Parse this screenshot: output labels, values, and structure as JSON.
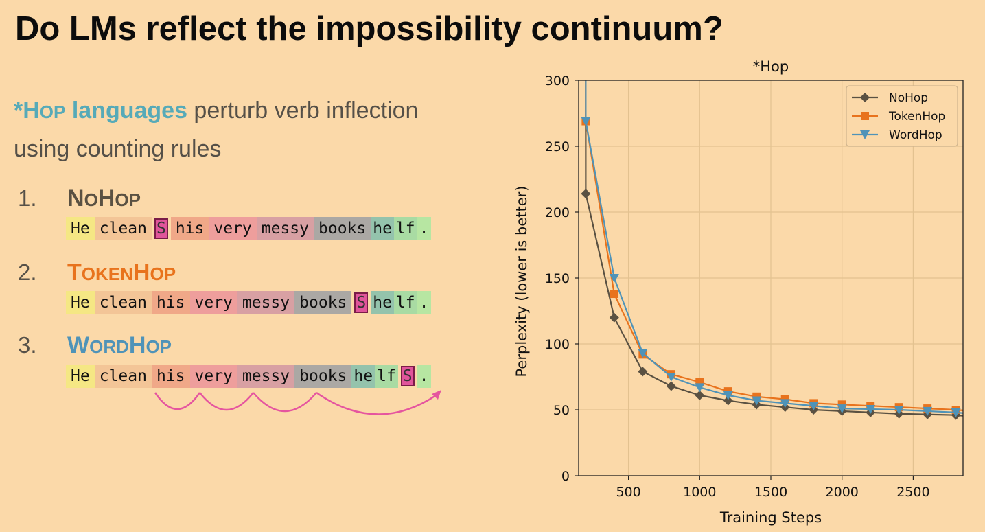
{
  "slide": {
    "title": "Do LMs reflect the impossibility continuum?",
    "intro": {
      "hop_star": "*H",
      "hop_small": "OP",
      "hop_languages": " languages",
      "rest_line1": " perturb verb inflection",
      "line2": "using counting rules"
    }
  },
  "items": [
    {
      "number": "1.",
      "name_parts": [
        "N",
        "O",
        "H",
        "OP"
      ],
      "color": "#5a5142",
      "tokens": [
        {
          "text": "He",
          "cls": "c-he"
        },
        {
          "text": "clean",
          "cls": "c-clean"
        },
        {
          "text": "S",
          "cls": "sfx"
        },
        {
          "text": "his",
          "cls": "c-his"
        },
        {
          "text": "very",
          "cls": "c-very"
        },
        {
          "text": "messy",
          "cls": "c-messy"
        },
        {
          "text": "books",
          "cls": "c-books"
        },
        {
          "text": "he",
          "cls": "c-hel",
          "tight": true
        },
        {
          "text": "lf",
          "cls": "c-lf",
          "tight": true
        },
        {
          "text": ".",
          "cls": "c-dot",
          "tight": true
        }
      ]
    },
    {
      "number": "2.",
      "name_parts": [
        "T",
        "OKEN",
        "H",
        "OP"
      ],
      "color": "#e8731d",
      "tokens": [
        {
          "text": "He",
          "cls": "c-he"
        },
        {
          "text": "clean",
          "cls": "c-clean"
        },
        {
          "text": "his",
          "cls": "c-his"
        },
        {
          "text": "very",
          "cls": "c-very"
        },
        {
          "text": "messy",
          "cls": "c-messy"
        },
        {
          "text": "books",
          "cls": "c-books"
        },
        {
          "text": "S",
          "cls": "sfx"
        },
        {
          "text": "he",
          "cls": "c-hel",
          "tight": true
        },
        {
          "text": "lf",
          "cls": "c-lf",
          "tight": true
        },
        {
          "text": ".",
          "cls": "c-dot",
          "tight": true
        }
      ]
    },
    {
      "number": "3.",
      "name_parts": [
        "W",
        "ORD",
        "H",
        "OP"
      ],
      "color": "#4f93b8",
      "tokens": [
        {
          "text": "He",
          "cls": "c-he"
        },
        {
          "text": "clean",
          "cls": "c-clean"
        },
        {
          "text": "his",
          "cls": "c-his"
        },
        {
          "text": "very",
          "cls": "c-very"
        },
        {
          "text": "messy",
          "cls": "c-messy"
        },
        {
          "text": "books",
          "cls": "c-books"
        },
        {
          "text": "he",
          "cls": "c-hel",
          "tight": true
        },
        {
          "text": "lf",
          "cls": "c-lf",
          "tight": true
        },
        {
          "text": "S",
          "cls": "sfx"
        },
        {
          "text": ".",
          "cls": "c-dot",
          "tight": true
        }
      ]
    }
  ],
  "colors": {
    "arrow": "#e5559f",
    "nohop": "#5a5142",
    "tokenhop": "#e8731d",
    "wordhop": "#4f93b8"
  },
  "chart_data": {
    "type": "line",
    "title": "*Hop",
    "xlabel": "Training Steps",
    "ylabel": "Perplexity (lower is better)",
    "xlim": [
      150,
      2850
    ],
    "ylim": [
      0,
      300
    ],
    "xticks": [
      500,
      1000,
      1500,
      2000,
      2500
    ],
    "yticks": [
      0,
      50,
      100,
      150,
      200,
      250,
      300
    ],
    "grid": true,
    "legend": "top-right",
    "x": [
      200,
      400,
      600,
      800,
      1000,
      1200,
      1400,
      1600,
      1800,
      2000,
      2200,
      2400,
      2600,
      2800
    ],
    "series": [
      {
        "name": "NoHop",
        "marker": "diamond",
        "color": "#5a5142",
        "start": [
          200,
          800
        ],
        "values": [
          214,
          120,
          79,
          68,
          61,
          57,
          54,
          52,
          50,
          49,
          48,
          47,
          46.5,
          46
        ]
      },
      {
        "name": "TokenHop",
        "marker": "square",
        "color": "#e8731d",
        "start": [
          200,
          600
        ],
        "values": [
          269,
          138,
          92,
          77,
          71,
          64,
          60,
          58,
          55,
          54,
          53,
          52,
          51,
          50
        ]
      },
      {
        "name": "WordHop",
        "marker": "triangle",
        "color": "#4f93b8",
        "start": [
          200,
          700
        ],
        "values": [
          269,
          150,
          93,
          75,
          67,
          61,
          57,
          55,
          53,
          51,
          50.5,
          50,
          49,
          48
        ]
      }
    ]
  }
}
